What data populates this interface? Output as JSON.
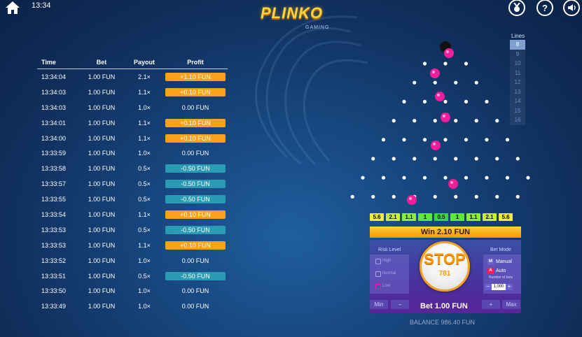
{
  "header": {
    "clock": "13:34",
    "logo": "PLINKO",
    "logo_sub": "GAMING"
  },
  "icons": {
    "home": "home-icon",
    "medal": "medal-icon",
    "help": "help-icon",
    "sound": "sound-icon"
  },
  "history": {
    "headers": [
      "Time",
      "Bet",
      "Payout",
      "Profit"
    ],
    "rows": [
      [
        "13:34:04",
        "1.00 FUN",
        "2.1×",
        "+1.10 FUN",
        "orange"
      ],
      [
        "13:34:03",
        "1.00 FUN",
        "1.1×",
        "+0.10 FUN",
        "orange"
      ],
      [
        "13:34:03",
        "1.00 FUN",
        "1.0×",
        "0.00 FUN",
        "none"
      ],
      [
        "13:34:01",
        "1.00 FUN",
        "1.1×",
        "+0.10 FUN",
        "orange"
      ],
      [
        "13:34:00",
        "1.00 FUN",
        "1.1×",
        "+0.10 FUN",
        "orange"
      ],
      [
        "13:33:59",
        "1.00 FUN",
        "1.0×",
        "0.00 FUN",
        "none"
      ],
      [
        "13:33:58",
        "1.00 FUN",
        "0.5×",
        "-0.50 FUN",
        "teal"
      ],
      [
        "13:33:57",
        "1.00 FUN",
        "0.5×",
        "-0.50 FUN",
        "teal"
      ],
      [
        "13:33:55",
        "1.00 FUN",
        "0.5×",
        "-0.50 FUN",
        "teal"
      ],
      [
        "13:33:54",
        "1.00 FUN",
        "1.1×",
        "+0.10 FUN",
        "orange"
      ],
      [
        "13:33:53",
        "1.00 FUN",
        "0.5×",
        "-0.50 FUN",
        "teal"
      ],
      [
        "13:33:53",
        "1.00 FUN",
        "1.1×",
        "+0.10 FUN",
        "orange"
      ],
      [
        "13:33:52",
        "1.00 FUN",
        "1.0×",
        "0.00 FUN",
        "none"
      ],
      [
        "13:33:51",
        "1.00 FUN",
        "0.5×",
        "-0.50 FUN",
        "teal"
      ],
      [
        "13:33:50",
        "1.00 FUN",
        "1.0×",
        "0.00 FUN",
        "none"
      ],
      [
        "13:33:49",
        "1.00 FUN",
        "1.0×",
        "0.00 FUN",
        "none"
      ]
    ]
  },
  "lines": {
    "label": "Lines",
    "options": [
      "8",
      "9",
      "10",
      "11",
      "12",
      "13",
      "14",
      "15",
      "16"
    ],
    "selected": "8"
  },
  "multipliers": [
    {
      "v": "5.6",
      "color": "#f0f03a"
    },
    {
      "v": "2.1",
      "color": "#c8f03a"
    },
    {
      "v": "1.1",
      "color": "#8cf03a"
    },
    {
      "v": "1",
      "color": "#5ee83a"
    },
    {
      "v": "0.5",
      "color": "#3ad83a"
    },
    {
      "v": "1",
      "color": "#5ee83a"
    },
    {
      "v": "1.1",
      "color": "#8cf03a"
    },
    {
      "v": "2.1",
      "color": "#c8f03a"
    },
    {
      "v": "5.6",
      "color": "#f0f03a"
    }
  ],
  "win": "Win 2.10 FUN",
  "risk": {
    "title": "Risk Level",
    "items": [
      "High",
      "Normal",
      "Low"
    ]
  },
  "mode": {
    "title": "Bet Mode",
    "manual_key": "M",
    "manual": "Manual",
    "auto_key": "A",
    "auto": "Auto",
    "nb_label": "Number of bets",
    "nb_value": "1,000",
    "minus": "−",
    "plus": "+"
  },
  "stop": {
    "label": "STOP",
    "count": "781"
  },
  "bet": {
    "min": "Min",
    "minus": "−",
    "plus": "+",
    "max": "Max",
    "label": "Bet 1.00 FUN"
  },
  "balance": "BALANCE 986.40 FUN",
  "ball_color": "#f01e9a"
}
